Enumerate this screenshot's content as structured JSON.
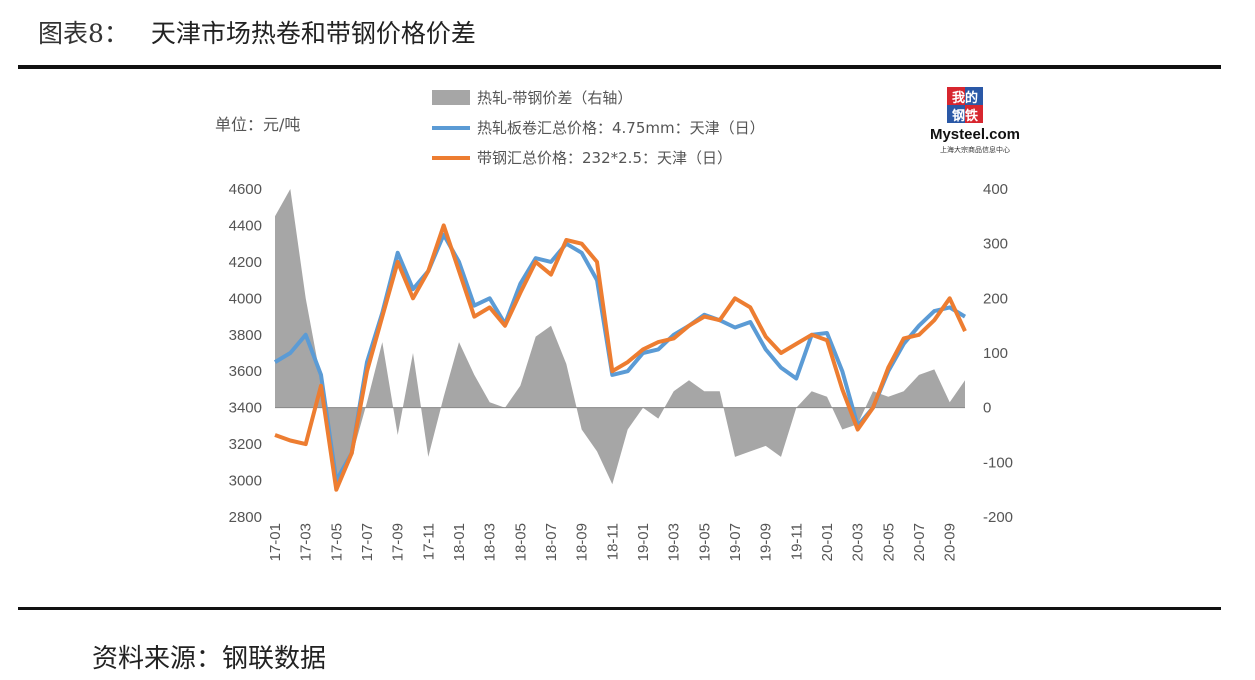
{
  "figure": {
    "number": "图表8：",
    "title": "天津市场热卷和带钢价格价差",
    "source": "资料来源：钢联数据"
  },
  "logo": {
    "top": "我的",
    "bottom": "钢铁",
    "brand": "Mysteel.com",
    "tagline": "上海大宗商品信息中心"
  },
  "colors": {
    "spread": "#a6a6a6",
    "hot_rolled": "#5b9bd5",
    "strip": "#ed7d31",
    "axis": "#888888"
  },
  "chart_data": {
    "type": "line",
    "unit_label": "单位：元/吨",
    "ylim": [
      2800,
      4600
    ],
    "y2lim": [
      -200,
      400
    ],
    "yticks": [
      2800,
      3000,
      3200,
      3400,
      3600,
      3800,
      4000,
      4200,
      4400,
      4600
    ],
    "y2ticks": [
      -200,
      -100,
      0,
      100,
      200,
      300,
      400
    ],
    "x": [
      "17-01",
      "17-02",
      "17-03",
      "17-04",
      "17-05",
      "17-06",
      "17-07",
      "17-08",
      "17-09",
      "17-10",
      "17-11",
      "17-12",
      "18-01",
      "18-02",
      "18-03",
      "18-04",
      "18-05",
      "18-06",
      "18-07",
      "18-08",
      "18-09",
      "18-10",
      "18-11",
      "18-12",
      "19-01",
      "19-02",
      "19-03",
      "19-04",
      "19-05",
      "19-06",
      "19-07",
      "19-08",
      "19-09",
      "19-10",
      "19-11",
      "19-12",
      "20-01",
      "20-02",
      "20-03",
      "20-04",
      "20-05",
      "20-06",
      "20-07",
      "20-08",
      "20-09",
      "20-10"
    ],
    "xtick_labels": [
      "17-01",
      "17-03",
      "17-05",
      "17-07",
      "17-09",
      "17-11",
      "18-01",
      "18-03",
      "18-05",
      "18-07",
      "18-09",
      "18-11",
      "19-01",
      "19-03",
      "19-05",
      "19-07",
      "19-09",
      "19-11",
      "20-01",
      "20-03",
      "20-05",
      "20-07",
      "20-09"
    ],
    "series": [
      {
        "name": "热轧-带钢价差（右轴）",
        "type": "area",
        "axis": "right",
        "values": [
          350,
          400,
          200,
          50,
          -130,
          -90,
          10,
          120,
          -50,
          100,
          -90,
          20,
          120,
          60,
          10,
          0,
          40,
          130,
          150,
          80,
          -40,
          -80,
          -140,
          -40,
          0,
          -20,
          30,
          50,
          30,
          30,
          -90,
          -80,
          -70,
          -90,
          0,
          30,
          20,
          -40,
          -30,
          30,
          20,
          30,
          60,
          70,
          10,
          50
        ]
      },
      {
        "name": "热轧板卷汇总价格：4.75mm：天津（日）",
        "type": "line",
        "axis": "left",
        "values": [
          3650,
          3700,
          3800,
          3580,
          3000,
          3150,
          3650,
          3920,
          4250,
          4050,
          4150,
          4350,
          4200,
          3960,
          4000,
          3860,
          4080,
          4220,
          4200,
          4300,
          4250,
          4100,
          3580,
          3600,
          3700,
          3720,
          3800,
          3850,
          3910,
          3880,
          3840,
          3870,
          3720,
          3620,
          3560,
          3800,
          3810,
          3600,
          3300,
          3400,
          3600,
          3750,
          3850,
          3930,
          3950,
          3900
        ]
      },
      {
        "name": "带钢汇总价格：232*2.5：天津（日）",
        "type": "line",
        "axis": "left",
        "values": [
          3250,
          3220,
          3200,
          3520,
          2950,
          3150,
          3600,
          3900,
          4200,
          4000,
          4150,
          4400,
          4150,
          3900,
          3950,
          3850,
          4030,
          4200,
          4130,
          4320,
          4300,
          4200,
          3600,
          3650,
          3720,
          3760,
          3780,
          3850,
          3900,
          3880,
          4000,
          3950,
          3790,
          3700,
          3750,
          3800,
          3770,
          3500,
          3280,
          3400,
          3620,
          3780,
          3800,
          3880,
          4000,
          3820
        ]
      }
    ]
  }
}
